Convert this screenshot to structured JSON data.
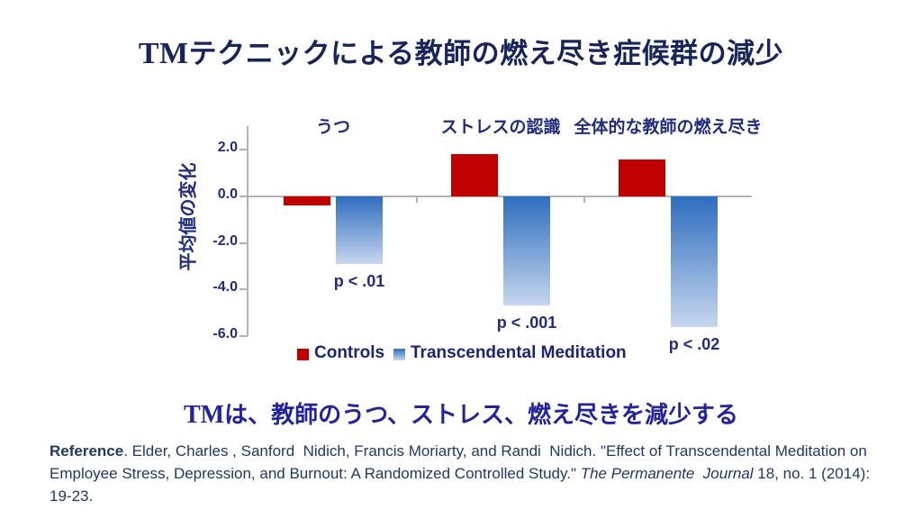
{
  "title": {
    "prefix": "TM",
    "text": "テクニックによる教師の燃え尽き症候群の減少"
  },
  "subtitle": {
    "prefix": "TM",
    "text": "は、教師のうつ、ストレス、燃え尽きを減少する"
  },
  "colors": {
    "title": "#17255b",
    "subtitle": "#23239b",
    "chart_text": "#212c7e",
    "legend_text": "#1c2670",
    "reference": "#1f3864",
    "controls": "#c00000",
    "tm_top": "#2e6dbe",
    "tm_bottom": "#c6d6ee",
    "axis": "#b3b3b3"
  },
  "chart_data": {
    "type": "bar",
    "title": "TMテクニックによる教師の燃え尽き症候群の減少",
    "ylabel": "平均値の変化",
    "xlabel": "",
    "ylim": [
      -6.0,
      3.0
    ],
    "yticks": [
      2.0,
      0.0,
      -2.0,
      -4.0,
      -6.0
    ],
    "grid": false,
    "legend_position": "bottom",
    "categories": [
      "うつ",
      "ストレスの認識",
      "全体的な教師の燃え尽き"
    ],
    "series": [
      {
        "name": "Controls",
        "color": "#c00000",
        "values": [
          -0.4,
          1.8,
          1.6
        ]
      },
      {
        "name": "Transcendental Meditation",
        "color_top": "#2e6dbe",
        "color_bottom": "#c6d6ee",
        "values": [
          -2.9,
          -4.7,
          -5.6
        ]
      }
    ],
    "p_values": [
      "p < .01",
      "p < .001",
      "p < .02"
    ]
  },
  "reference": {
    "lines": [
      [
        {
          "text": "Reference",
          "bold": true
        },
        {
          "text": ". Elder, Charles , Sanford  Nidich, Francis Moriarty, and Randi  Nidich. \"Effect of Transcendental Meditation on"
        }
      ],
      [
        {
          "text": "Employee Stress, Depression, and Burnout: A Randomized Controlled Study.\" "
        },
        {
          "text": "The Permanente  Journal",
          "italic": true
        },
        {
          "text": " 18, no. 1 (2014):"
        }
      ],
      [
        {
          "text": "19-23."
        }
      ]
    ]
  }
}
